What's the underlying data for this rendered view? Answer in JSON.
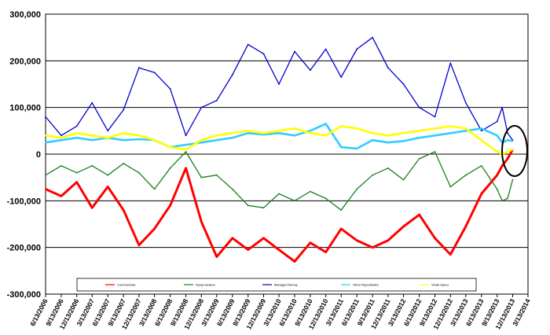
{
  "chart_data": {
    "type": "line",
    "y_ticks": [
      "300,000",
      "200,000",
      "100,000",
      "0",
      "-100,000",
      "-200,000",
      "-300,000"
    ],
    "y_tick_values": [
      300000,
      200000,
      100000,
      0,
      -100000,
      -200000,
      -300000
    ],
    "ylim": [
      -300000,
      300000
    ],
    "x_tick_labels": [
      "6/13/2006",
      "9/13/2006",
      "12/13/2006",
      "3/13/2007",
      "6/13/2007",
      "9/13/2007",
      "12/13/2007",
      "3/13/2008",
      "6/13/2008",
      "9/13/2008",
      "12/13/2008",
      "3/13/2009",
      "6/13/2009",
      "9/13/2009",
      "12/13/2009",
      "3/13/2010",
      "6/13/2010",
      "9/13/2010",
      "12/13/2010",
      "3/13/2011",
      "6/13/2011",
      "9/13/2011",
      "12/13/2011",
      "3/13/2012",
      "6/13/2012",
      "9/13/2012",
      "12/13/2012",
      "3/13/2013",
      "6/13/2013",
      "9/13/2013",
      "12/13/2013",
      "3/13/2014"
    ],
    "xlim": [
      "6/13/2006",
      "3/13/2014"
    ],
    "grid": true,
    "legend_placement": "bottom",
    "annotation": "circle around the most recent values (late 2013)",
    "series": [
      {
        "name": "Commercials",
        "color": "#ff0000",
        "x": [
          "6/13/2006",
          "9/13/2006",
          "12/13/2006",
          "3/13/2007",
          "6/13/2007",
          "9/13/2007",
          "12/13/2007",
          "3/13/2008",
          "6/13/2008",
          "9/13/2008",
          "12/13/2008",
          "3/13/2009",
          "6/13/2009",
          "9/13/2009",
          "12/13/2009",
          "3/13/2010",
          "6/13/2010",
          "9/13/2010",
          "12/13/2010",
          "3/13/2011",
          "6/13/2011",
          "9/13/2011",
          "12/13/2011",
          "3/13/2012",
          "6/13/2012",
          "9/13/2012",
          "12/13/2012",
          "3/13/2013",
          "6/13/2013",
          "9/13/2013",
          "10/13/2013",
          "11/13/2013",
          "12/13/2013"
        ],
        "values": [
          -75000,
          -90000,
          -60000,
          -115000,
          -70000,
          -120000,
          -195000,
          -160000,
          -110000,
          -30000,
          -145000,
          -220000,
          -180000,
          -205000,
          -180000,
          -205000,
          -230000,
          -190000,
          -210000,
          -160000,
          -185000,
          -200000,
          -185000,
          -155000,
          -130000,
          -180000,
          -215000,
          -155000,
          -85000,
          -45000,
          -25000,
          -10000,
          10000
        ]
      },
      {
        "name": "Swap Dealers",
        "color": "#1a7f1a",
        "x": [
          "6/13/2006",
          "9/13/2006",
          "12/13/2006",
          "3/13/2007",
          "6/13/2007",
          "9/13/2007",
          "12/13/2007",
          "3/13/2008",
          "6/13/2008",
          "9/13/2008",
          "12/13/2008",
          "3/13/2009",
          "6/13/2009",
          "9/13/2009",
          "12/13/2009",
          "3/13/2010",
          "6/13/2010",
          "9/13/2010",
          "12/13/2010",
          "3/13/2011",
          "6/13/2011",
          "9/13/2011",
          "12/13/2011",
          "3/13/2012",
          "6/13/2012",
          "9/13/2012",
          "12/13/2012",
          "3/13/2013",
          "6/13/2013",
          "9/13/2013",
          "10/13/2013",
          "11/13/2013",
          "12/13/2013"
        ],
        "values": [
          -45000,
          -25000,
          -40000,
          -25000,
          -45000,
          -20000,
          -40000,
          -75000,
          -30000,
          5000,
          -50000,
          -45000,
          -75000,
          -110000,
          -115000,
          -85000,
          -100000,
          -80000,
          -95000,
          -120000,
          -75000,
          -45000,
          -30000,
          -55000,
          -10000,
          5000,
          -70000,
          -45000,
          -25000,
          -75000,
          -100000,
          -95000,
          -55000
        ]
      },
      {
        "name": "Managed Money",
        "color": "#0000cc",
        "x": [
          "6/13/2006",
          "9/13/2006",
          "12/13/2006",
          "3/13/2007",
          "6/13/2007",
          "9/13/2007",
          "12/13/2007",
          "3/13/2008",
          "6/13/2008",
          "9/13/2008",
          "12/13/2008",
          "3/13/2009",
          "6/13/2009",
          "9/13/2009",
          "12/13/2009",
          "3/13/2010",
          "6/13/2010",
          "9/13/2010",
          "12/13/2010",
          "3/13/2011",
          "6/13/2011",
          "9/13/2011",
          "12/13/2011",
          "3/13/2012",
          "6/13/2012",
          "9/13/2012",
          "12/13/2012",
          "3/13/2013",
          "6/13/2013",
          "9/13/2013",
          "10/13/2013",
          "11/13/2013",
          "12/13/2013"
        ],
        "values": [
          80000,
          40000,
          60000,
          110000,
          50000,
          95000,
          185000,
          175000,
          140000,
          40000,
          100000,
          115000,
          170000,
          235000,
          215000,
          150000,
          220000,
          180000,
          225000,
          165000,
          225000,
          250000,
          185000,
          150000,
          100000,
          80000,
          195000,
          110000,
          50000,
          70000,
          100000,
          45000,
          30000
        ]
      },
      {
        "name": "Other Reportables",
        "color": "#33ccff",
        "x": [
          "6/13/2006",
          "9/13/2006",
          "12/13/2006",
          "3/13/2007",
          "6/13/2007",
          "9/13/2007",
          "12/13/2007",
          "3/13/2008",
          "6/13/2008",
          "9/13/2008",
          "12/13/2008",
          "3/13/2009",
          "6/13/2009",
          "9/13/2009",
          "12/13/2009",
          "3/13/2010",
          "6/13/2010",
          "9/13/2010",
          "12/13/2010",
          "3/13/2011",
          "6/13/2011",
          "9/13/2011",
          "12/13/2011",
          "3/13/2012",
          "6/13/2012",
          "9/13/2012",
          "12/13/2012",
          "3/13/2013",
          "6/13/2013",
          "9/13/2013",
          "10/13/2013",
          "11/13/2013",
          "12/13/2013"
        ],
        "values": [
          25000,
          30000,
          35000,
          30000,
          35000,
          30000,
          32000,
          30000,
          15000,
          20000,
          25000,
          30000,
          35000,
          45000,
          42000,
          45000,
          40000,
          50000,
          65000,
          15000,
          12000,
          30000,
          25000,
          28000,
          35000,
          40000,
          45000,
          50000,
          55000,
          40000,
          25000,
          30000,
          28000
        ]
      },
      {
        "name": "Small Specs",
        "color": "#ffff00",
        "x": [
          "6/13/2006",
          "9/13/2006",
          "12/13/2006",
          "3/13/2007",
          "6/13/2007",
          "9/13/2007",
          "12/13/2007",
          "3/13/2008",
          "6/13/2008",
          "9/13/2008",
          "12/13/2008",
          "3/13/2009",
          "6/13/2009",
          "9/13/2009",
          "12/13/2009",
          "3/13/2010",
          "6/13/2010",
          "9/13/2010",
          "12/13/2010",
          "3/13/2011",
          "6/13/2011",
          "9/13/2011",
          "12/13/2011",
          "3/13/2012",
          "6/13/2012",
          "9/13/2012",
          "12/13/2012",
          "3/13/2013",
          "6/13/2013",
          "9/13/2013",
          "10/13/2013",
          "11/13/2013",
          "12/13/2013"
        ],
        "values": [
          40000,
          35000,
          45000,
          40000,
          35000,
          45000,
          40000,
          30000,
          15000,
          10000,
          30000,
          40000,
          45000,
          50000,
          45000,
          50000,
          55000,
          45000,
          40000,
          60000,
          55000,
          45000,
          40000,
          45000,
          50000,
          55000,
          60000,
          55000,
          30000,
          5000,
          0,
          5000,
          10000
        ]
      }
    ]
  }
}
